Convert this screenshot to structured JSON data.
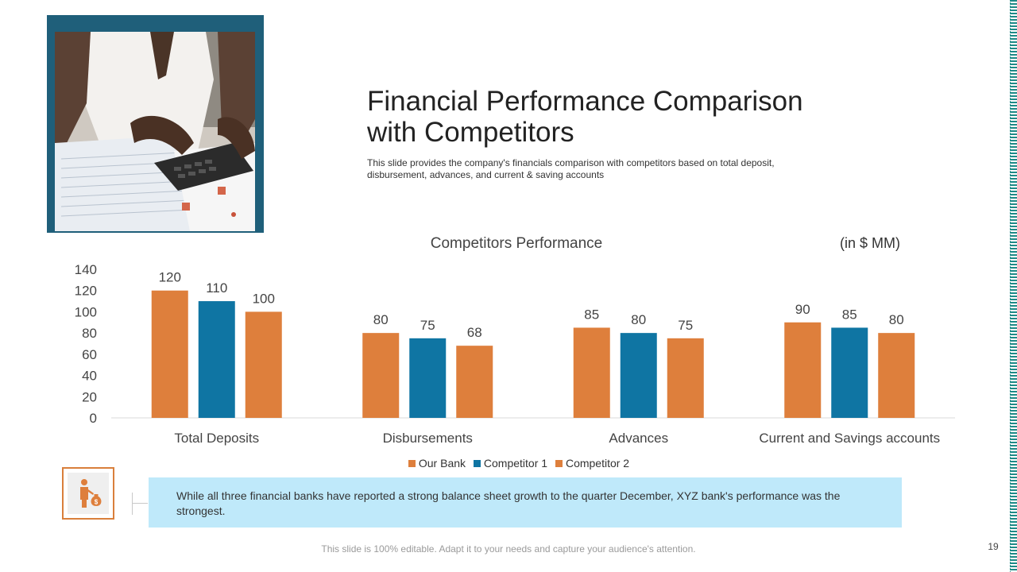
{
  "slide": {
    "title_line1": "Financial Performance Comparison",
    "title_line2": "with Competitors",
    "subtitle": "This slide provides the company's financials comparison with competitors based on total deposit, disbursement, advances, and current & saving accounts",
    "unit_label": "(in $ MM)",
    "callout_text": "While all three financial banks have reported a strong balance sheet growth to the quarter December, XYZ bank's performance was the strongest.",
    "footer": "This slide is 100% editable. Adapt it to your needs and capture your audience's attention.",
    "page_number": "19"
  },
  "chart_data": {
    "type": "bar",
    "title": "Competitors Performance",
    "categories": [
      "Total Deposits",
      "Disbursements",
      "Advances",
      "Current and Savings accounts"
    ],
    "series": [
      {
        "name": "Our Bank",
        "values": [
          120,
          80,
          85,
          90
        ],
        "color": "#de7f3c"
      },
      {
        "name": "Competitor 1",
        "values": [
          110,
          75,
          80,
          85
        ],
        "color": "#0f75a3"
      },
      {
        "name": "Competitor 2",
        "values": [
          100,
          68,
          75,
          80
        ],
        "color": "#de7f3c"
      }
    ],
    "yticks": [
      0,
      20,
      40,
      60,
      80,
      100,
      120,
      140
    ],
    "ylim": [
      0,
      140
    ],
    "grid": false,
    "legend_position": "bottom"
  }
}
